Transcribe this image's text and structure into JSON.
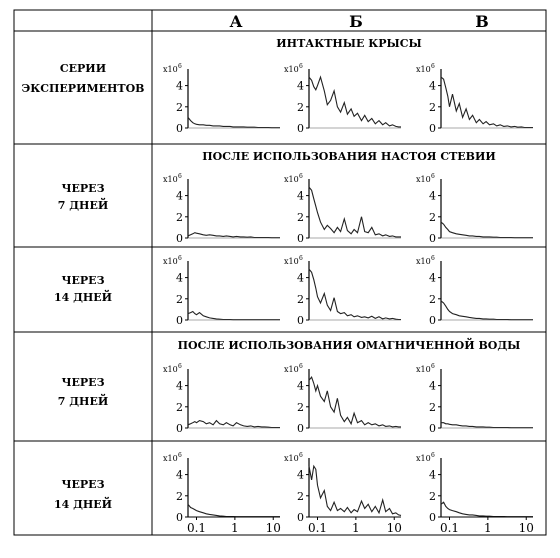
{
  "columns": [
    "А",
    "Б",
    "В"
  ],
  "row_header": "СЕРИИ ЭКСПЕРИМЕНТОВ",
  "row_header_lines": [
    "СЕРИИ",
    "ЭКСПЕРИМЕНТОВ"
  ],
  "sections": [
    {
      "title": "ИНТАКТНЫЕ  КРЫСЫ",
      "rows": [
        {
          "label": "",
          "label_lines": []
        }
      ]
    },
    {
      "title": "ПОСЛЕ ИСПОЛЬЗОВАНИЯ НАСТОЯ СТЕВИИ",
      "rows": [
        {
          "label": "ЧЕРЕЗ 7 ДНЕЙ",
          "label_lines": [
            "ЧЕРЕЗ",
            "7 ДНЕЙ"
          ]
        },
        {
          "label": "ЧЕРЕЗ 14 ДНЕЙ",
          "label_lines": [
            "ЧЕРЕЗ",
            "14 ДНЕЙ"
          ]
        }
      ]
    },
    {
      "title": "ПОСЛЕ ИСПОЛЬЗОВАНИЯ ОМАГНИЧЕННОЙ ВОДЫ",
      "rows": [
        {
          "label": "ЧЕРЕЗ 7 ДНЕЙ",
          "label_lines": [
            "ЧЕРЕЗ",
            "7 ДНЕЙ"
          ]
        },
        {
          "label": "ЧЕРЕЗ 14 ДНЕЙ",
          "label_lines": [
            "ЧЕРЕЗ",
            "14 ДНЕЙ"
          ]
        }
      ]
    }
  ],
  "axis": {
    "y_multiplier": "x10",
    "y_exponent": "6",
    "y_ticks": [
      "0",
      "2",
      "4"
    ],
    "x_ticks": [
      "0.1",
      "1",
      "10"
    ]
  },
  "chart_data": {
    "type": "line",
    "xscale": "log",
    "xlim": [
      0.06,
      15
    ],
    "ylim": [
      0,
      5
    ],
    "x_ticks": [
      0.1,
      1,
      10
    ],
    "y_ticks": [
      0,
      2,
      4
    ],
    "y_multiplier": "x10^6",
    "x": [
      0.06,
      0.07,
      0.08,
      0.09,
      0.1,
      0.12,
      0.15,
      0.18,
      0.22,
      0.27,
      0.33,
      0.4,
      0.5,
      0.6,
      0.75,
      0.9,
      1.1,
      1.4,
      1.7,
      2.1,
      2.6,
      3.2,
      4,
      5,
      6,
      7.5,
      9,
      11,
      13,
      15
    ],
    "panels": [
      {
        "section": 0,
        "row": 0,
        "column": "А",
        "values": [
          1.0,
          0.7,
          0.5,
          0.4,
          0.35,
          0.3,
          0.3,
          0.25,
          0.25,
          0.2,
          0.2,
          0.2,
          0.15,
          0.15,
          0.15,
          0.1,
          0.1,
          0.1,
          0.1,
          0.08,
          0.08,
          0.08,
          0.05,
          0.05,
          0.05,
          0.05,
          0.03,
          0.03,
          0.03,
          0.03
        ]
      },
      {
        "section": 0,
        "row": 0,
        "column": "Б",
        "values": [
          4.8,
          4.5,
          3.9,
          3.6,
          4.0,
          4.8,
          3.5,
          2.2,
          2.6,
          3.5,
          2.0,
          1.5,
          2.4,
          1.3,
          1.8,
          1.1,
          1.4,
          0.7,
          1.2,
          0.6,
          0.9,
          0.4,
          0.7,
          0.3,
          0.5,
          0.2,
          0.3,
          0.15,
          0.1,
          0.1
        ]
      },
      {
        "section": 0,
        "row": 0,
        "column": "В",
        "values": [
          4.8,
          4.6,
          3.8,
          3.0,
          2.0,
          3.2,
          1.6,
          2.3,
          1.0,
          1.8,
          0.8,
          1.2,
          0.5,
          0.8,
          0.4,
          0.6,
          0.3,
          0.4,
          0.2,
          0.3,
          0.15,
          0.2,
          0.1,
          0.15,
          0.08,
          0.1,
          0.05,
          0.05,
          0.05,
          0.05
        ]
      },
      {
        "section": 1,
        "row": 0,
        "column": "А",
        "values": [
          0.2,
          0.3,
          0.4,
          0.5,
          0.45,
          0.4,
          0.3,
          0.25,
          0.3,
          0.25,
          0.2,
          0.2,
          0.15,
          0.2,
          0.15,
          0.1,
          0.15,
          0.1,
          0.1,
          0.08,
          0.1,
          0.05,
          0.05,
          0.05,
          0.05,
          0.05,
          0.03,
          0.03,
          0.03,
          0.03
        ]
      },
      {
        "section": 1,
        "row": 0,
        "column": "Б",
        "values": [
          4.8,
          4.5,
          3.7,
          3.0,
          2.4,
          1.5,
          0.8,
          1.2,
          0.9,
          0.5,
          1.0,
          0.6,
          1.8,
          0.7,
          0.4,
          0.8,
          0.5,
          2.0,
          0.6,
          0.5,
          1.0,
          0.3,
          0.4,
          0.2,
          0.3,
          0.15,
          0.2,
          0.1,
          0.1,
          0.1
        ]
      },
      {
        "section": 1,
        "row": 0,
        "column": "В",
        "values": [
          1.5,
          1.3,
          1.0,
          0.8,
          0.6,
          0.5,
          0.4,
          0.35,
          0.3,
          0.25,
          0.2,
          0.2,
          0.15,
          0.15,
          0.1,
          0.1,
          0.1,
          0.08,
          0.08,
          0.05,
          0.05,
          0.05,
          0.05,
          0.03,
          0.03,
          0.03,
          0.03,
          0.03,
          0.03,
          0.03
        ]
      },
      {
        "section": 1,
        "row": 1,
        "column": "А",
        "values": [
          0.6,
          0.7,
          0.8,
          0.6,
          0.5,
          0.7,
          0.4,
          0.3,
          0.2,
          0.15,
          0.1,
          0.08,
          0.05,
          0.05,
          0.05,
          0.03,
          0.03,
          0.03,
          0.03,
          0.03,
          0.03,
          0.03,
          0.03,
          0.03,
          0.03,
          0.03,
          0.03,
          0.03,
          0.03,
          0.03
        ]
      },
      {
        "section": 1,
        "row": 1,
        "column": "Б",
        "values": [
          4.8,
          4.5,
          3.8,
          3.0,
          2.2,
          1.6,
          2.5,
          1.4,
          0.9,
          2.1,
          0.8,
          0.6,
          0.7,
          0.4,
          0.5,
          0.3,
          0.4,
          0.25,
          0.3,
          0.2,
          0.35,
          0.15,
          0.3,
          0.1,
          0.2,
          0.1,
          0.15,
          0.08,
          0.05,
          0.05
        ]
      },
      {
        "section": 1,
        "row": 1,
        "column": "В",
        "values": [
          1.8,
          1.6,
          1.3,
          1.0,
          0.8,
          0.6,
          0.5,
          0.4,
          0.35,
          0.3,
          0.25,
          0.2,
          0.15,
          0.15,
          0.1,
          0.1,
          0.08,
          0.08,
          0.05,
          0.05,
          0.05,
          0.05,
          0.03,
          0.03,
          0.03,
          0.03,
          0.03,
          0.03,
          0.03,
          0.03
        ]
      },
      {
        "section": 2,
        "row": 0,
        "column": "А",
        "values": [
          0.3,
          0.4,
          0.5,
          0.6,
          0.5,
          0.7,
          0.6,
          0.4,
          0.5,
          0.3,
          0.7,
          0.4,
          0.3,
          0.5,
          0.3,
          0.2,
          0.5,
          0.3,
          0.2,
          0.15,
          0.2,
          0.1,
          0.15,
          0.1,
          0.1,
          0.08,
          0.05,
          0.05,
          0.05,
          0.05
        ]
      },
      {
        "section": 2,
        "row": 0,
        "column": "Б",
        "values": [
          4.5,
          4.8,
          4.2,
          3.5,
          4.0,
          3.0,
          2.5,
          3.5,
          2.0,
          1.5,
          2.8,
          1.2,
          0.6,
          1.0,
          0.4,
          1.4,
          0.5,
          0.7,
          0.3,
          0.5,
          0.3,
          0.4,
          0.2,
          0.3,
          0.15,
          0.2,
          0.1,
          0.15,
          0.1,
          0.1
        ]
      },
      {
        "section": 2,
        "row": 0,
        "column": "В",
        "values": [
          0.5,
          0.5,
          0.4,
          0.4,
          0.35,
          0.3,
          0.3,
          0.25,
          0.2,
          0.2,
          0.15,
          0.15,
          0.1,
          0.1,
          0.1,
          0.08,
          0.08,
          0.05,
          0.05,
          0.05,
          0.05,
          0.05,
          0.03,
          0.03,
          0.03,
          0.03,
          0.03,
          0.03,
          0.03,
          0.03
        ]
      },
      {
        "section": 2,
        "row": 1,
        "column": "А",
        "values": [
          1.2,
          0.9,
          0.8,
          0.7,
          0.6,
          0.5,
          0.4,
          0.3,
          0.25,
          0.2,
          0.15,
          0.1,
          0.08,
          0.05,
          0.05,
          0.05,
          0.03,
          0.03,
          0.03,
          0.03,
          0.03,
          0.03,
          0.03,
          0.03,
          0.03,
          0.03,
          0.03,
          0.03,
          0.03,
          0.03
        ]
      },
      {
        "section": 2,
        "row": 1,
        "column": "Б",
        "values": [
          4.8,
          3.5,
          4.8,
          4.5,
          3.0,
          1.8,
          2.5,
          1.0,
          0.6,
          1.4,
          0.6,
          0.8,
          0.5,
          0.9,
          0.4,
          0.7,
          0.5,
          1.5,
          0.8,
          1.2,
          0.5,
          1.0,
          0.4,
          1.6,
          0.5,
          0.8,
          0.3,
          0.4,
          0.2,
          0.15
        ]
      },
      {
        "section": 2,
        "row": 1,
        "column": "В",
        "values": [
          1.2,
          1.4,
          1.0,
          0.8,
          0.7,
          0.6,
          0.5,
          0.4,
          0.3,
          0.25,
          0.2,
          0.2,
          0.15,
          0.1,
          0.1,
          0.08,
          0.08,
          0.05,
          0.05,
          0.05,
          0.05,
          0.03,
          0.03,
          0.03,
          0.03,
          0.03,
          0.03,
          0.03,
          0.03,
          0.03
        ]
      }
    ]
  }
}
